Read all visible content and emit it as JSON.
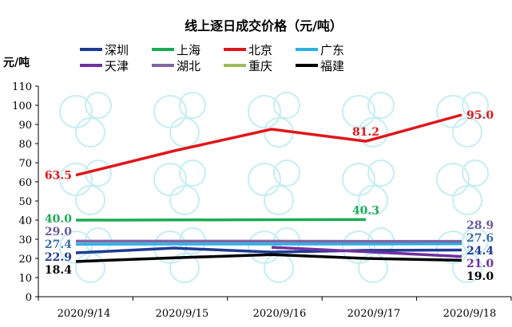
{
  "chart_data": {
    "type": "line",
    "title": "线上逐日成交价格（元/吨）",
    "ylabel": "元/吨",
    "xlabel": "",
    "categories": [
      "2020/9/14",
      "2020/9/15",
      "2020/9/16",
      "2020/9/17",
      "2020/9/18"
    ],
    "ylim": [
      0,
      110
    ],
    "yticks": [
      0,
      10,
      20,
      30,
      40,
      50,
      60,
      70,
      80,
      90,
      100,
      110
    ],
    "grid": false,
    "legend_position": "top",
    "series": [
      {
        "name": "深圳",
        "color": "#1f3a93",
        "values": [
          22.9,
          25.4,
          23.3,
          24.2,
          24.4
        ],
        "labels": {
          "0": "22.9",
          "4": "24.4"
        }
      },
      {
        "name": "上海",
        "color": "#1aab55",
        "values": [
          40.0,
          40.1,
          40.2,
          40.3,
          null
        ],
        "labels": {
          "0": "40.0",
          "3": "40.3"
        }
      },
      {
        "name": "北京",
        "color": "#e0161b",
        "values": [
          63.5,
          76.2,
          87.5,
          81.2,
          95.0
        ],
        "labels": {
          "0": "63.5",
          "3": "81.2",
          "4": "95.0"
        }
      },
      {
        "name": "广东",
        "color": "#2ab0e4",
        "values": [
          27.4,
          27.5,
          27.5,
          27.5,
          27.6
        ],
        "labels": {
          "0": "27.4",
          "4": "27.6"
        }
      },
      {
        "name": "天津",
        "color": "#7030a0",
        "values": [
          null,
          null,
          25.8,
          23.5,
          21.0
        ],
        "labels": {
          "4": "21.0"
        }
      },
      {
        "name": "湖北",
        "color": "#8064a2",
        "values": [
          29.0,
          29.0,
          29.0,
          28.9,
          28.9
        ],
        "labels": {
          "0": "29.0",
          "4": "28.9"
        }
      },
      {
        "name": "重庆",
        "color": "#9bbb59",
        "values": [
          null,
          null,
          null,
          null,
          null
        ],
        "labels": {}
      },
      {
        "name": "福建",
        "color": "#000000",
        "values": [
          18.4,
          20.3,
          22.0,
          20.0,
          19.0
        ],
        "labels": {
          "0": "18.4",
          "4": "19.0"
        }
      }
    ]
  }
}
